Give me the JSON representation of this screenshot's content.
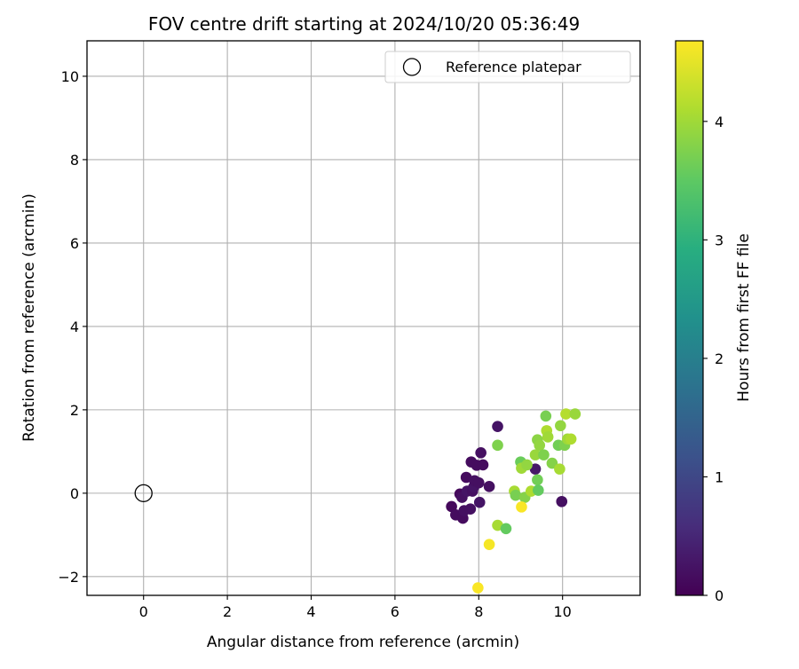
{
  "chart_data": {
    "type": "scatter",
    "title": "FOV centre drift starting at 2024/10/20 05:36:49",
    "xlabel": "Angular distance from reference (arcmin)",
    "ylabel": "Rotation from reference (arcmin)",
    "xlim": [
      -1.35,
      11.85
    ],
    "ylim": [
      -2.45,
      10.85
    ],
    "xticks": [
      0,
      2,
      4,
      6,
      8,
      10
    ],
    "yticks": [
      -2,
      0,
      2,
      4,
      6,
      8,
      10
    ],
    "grid": true,
    "legend": {
      "position": "upper-right",
      "entries": [
        "Reference platepar"
      ]
    },
    "reference_point": {
      "x": 0,
      "y": 0
    },
    "colorbar": {
      "label": "Hours from first FF file",
      "colormap": "viridis",
      "range": [
        0,
        4.68
      ],
      "ticks": [
        0,
        1,
        2,
        3,
        4
      ]
    },
    "points": [
      {
        "x": 7.35,
        "y": -0.32,
        "c": 0.1
      },
      {
        "x": 7.45,
        "y": -0.52,
        "c": 0.15
      },
      {
        "x": 7.55,
        "y": -0.02,
        "c": 0.1
      },
      {
        "x": 7.6,
        "y": -0.1,
        "c": 0.2
      },
      {
        "x": 7.62,
        "y": -0.6,
        "c": 0.15
      },
      {
        "x": 7.65,
        "y": -0.42,
        "c": 0.2
      },
      {
        "x": 7.7,
        "y": 0.38,
        "c": 0.15
      },
      {
        "x": 7.72,
        "y": 0.05,
        "c": 0.25
      },
      {
        "x": 7.8,
        "y": -0.38,
        "c": 0.2
      },
      {
        "x": 7.82,
        "y": 0.75,
        "c": 0.15
      },
      {
        "x": 7.85,
        "y": 0.05,
        "c": 0.2
      },
      {
        "x": 7.88,
        "y": 0.15,
        "c": 0.25
      },
      {
        "x": 7.9,
        "y": 0.3,
        "c": 0.2
      },
      {
        "x": 7.95,
        "y": 0.67,
        "c": 0.15
      },
      {
        "x": 8.0,
        "y": 0.25,
        "c": 0.2
      },
      {
        "x": 8.02,
        "y": -0.22,
        "c": 0.25
      },
      {
        "x": 8.05,
        "y": 0.97,
        "c": 0.2
      },
      {
        "x": 8.1,
        "y": 0.68,
        "c": 0.15
      },
      {
        "x": 8.25,
        "y": 0.16,
        "c": 0.2
      },
      {
        "x": 8.45,
        "y": 1.6,
        "c": 0.25
      },
      {
        "x": 9.35,
        "y": 0.58,
        "c": 0.3
      },
      {
        "x": 9.98,
        "y": -0.2,
        "c": 0.2
      },
      {
        "x": 8.45,
        "y": 1.15,
        "c": 3.75
      },
      {
        "x": 8.45,
        "y": -0.77,
        "c": 4.05
      },
      {
        "x": 8.65,
        "y": -0.85,
        "c": 3.55
      },
      {
        "x": 8.85,
        "y": 0.05,
        "c": 4.05
      },
      {
        "x": 8.88,
        "y": -0.05,
        "c": 3.7
      },
      {
        "x": 9.0,
        "y": 0.75,
        "c": 3.6
      },
      {
        "x": 9.02,
        "y": 0.6,
        "c": 4.0
      },
      {
        "x": 9.1,
        "y": -0.1,
        "c": 3.8
      },
      {
        "x": 9.15,
        "y": 0.68,
        "c": 3.9
      },
      {
        "x": 9.25,
        "y": 0.05,
        "c": 4.1
      },
      {
        "x": 9.35,
        "y": 0.92,
        "c": 3.95
      },
      {
        "x": 9.4,
        "y": 1.28,
        "c": 3.85
      },
      {
        "x": 9.4,
        "y": 0.32,
        "c": 3.65
      },
      {
        "x": 9.42,
        "y": 0.07,
        "c": 3.55
      },
      {
        "x": 9.45,
        "y": 1.15,
        "c": 3.9
      },
      {
        "x": 9.55,
        "y": 0.92,
        "c": 3.75
      },
      {
        "x": 9.6,
        "y": 1.85,
        "c": 3.7
      },
      {
        "x": 9.62,
        "y": 1.5,
        "c": 4.1
      },
      {
        "x": 9.65,
        "y": 1.35,
        "c": 4.0
      },
      {
        "x": 9.75,
        "y": 0.72,
        "c": 3.8
      },
      {
        "x": 9.9,
        "y": 1.15,
        "c": 3.65
      },
      {
        "x": 9.93,
        "y": 0.58,
        "c": 4.05
      },
      {
        "x": 9.95,
        "y": 1.62,
        "c": 3.9
      },
      {
        "x": 10.05,
        "y": 1.15,
        "c": 3.75
      },
      {
        "x": 10.08,
        "y": 1.9,
        "c": 4.15
      },
      {
        "x": 10.12,
        "y": 1.3,
        "c": 4.0
      },
      {
        "x": 10.2,
        "y": 1.3,
        "c": 4.1
      },
      {
        "x": 10.3,
        "y": 1.9,
        "c": 3.95
      },
      {
        "x": 9.02,
        "y": -0.33,
        "c": 4.65
      },
      {
        "x": 8.25,
        "y": -1.23,
        "c": 4.62
      },
      {
        "x": 7.98,
        "y": -2.27,
        "c": 4.65
      }
    ]
  }
}
